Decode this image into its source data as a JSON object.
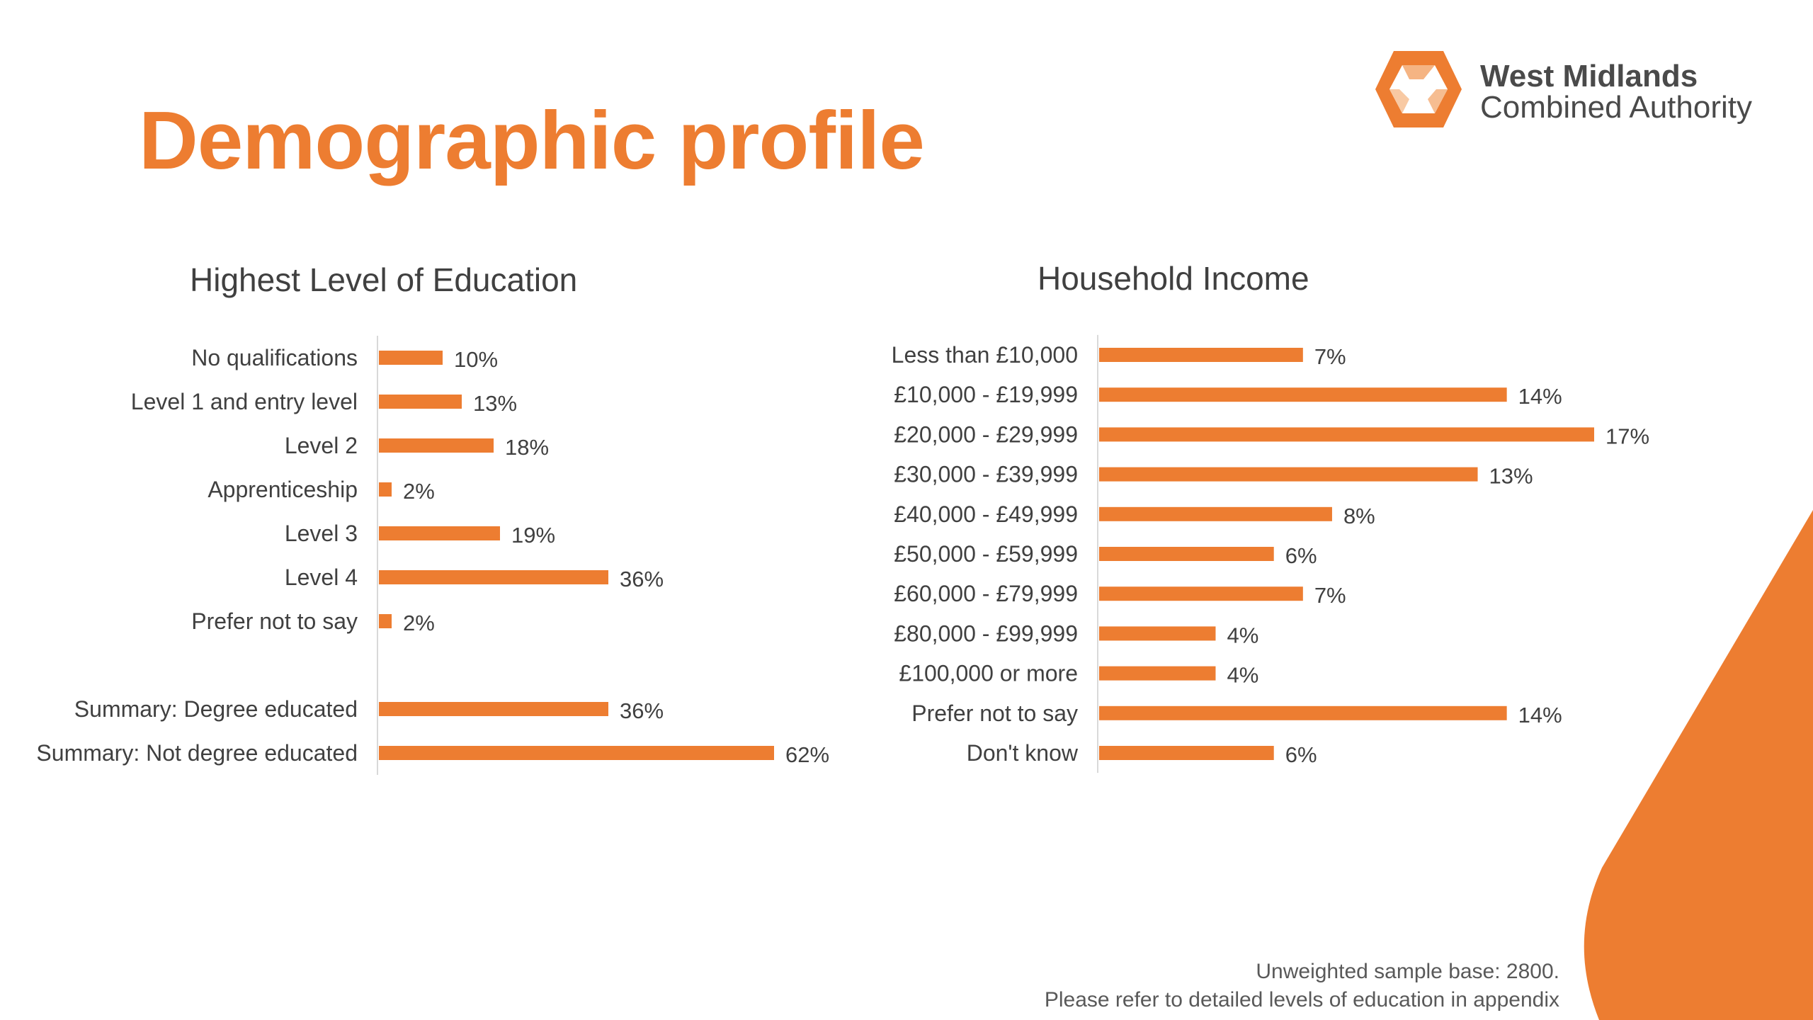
{
  "slide": {
    "title": "Demographic profile",
    "accent_color": "#ED7D31",
    "text_color": "#404040"
  },
  "logo": {
    "line1": "West Midlands",
    "line2": "Combined Authority",
    "icon": "hexagon-logo-icon"
  },
  "chart_data": [
    {
      "type": "bar",
      "orientation": "horizontal",
      "title": "Highest Level of Education",
      "categories": [
        "No qualifications",
        "Level 1 and entry level",
        "Level 2",
        "Apprenticeship",
        "Level 3",
        "Level 4",
        "Prefer not to say",
        "",
        "Summary: Degree educated",
        "Summary: Not degree educated"
      ],
      "values": [
        10,
        13,
        18,
        2,
        19,
        36,
        2,
        null,
        36,
        62
      ],
      "data_labels": [
        "10%",
        "13%",
        "18%",
        "2%",
        "19%",
        "36%",
        "2%",
        "",
        "36%",
        "62%"
      ],
      "unit": "%",
      "xlim": [
        0,
        62
      ],
      "grid": false,
      "legend": "none"
    },
    {
      "type": "bar",
      "orientation": "horizontal",
      "title": "Household Income",
      "categories": [
        "Less than £10,000",
        "£10,000 - £19,999",
        "£20,000 - £29,999",
        "£30,000 - £39,999",
        "£40,000 - £49,999",
        "£50,000 - £59,999",
        "£60,000 - £79,999",
        "£80,000 - £99,999",
        "£100,000 or more",
        "Prefer not to say",
        "Don't know"
      ],
      "values": [
        7,
        14,
        17,
        13,
        8,
        6,
        7,
        4,
        4,
        14,
        6
      ],
      "data_labels": [
        "7%",
        "14%",
        "17%",
        "13%",
        "8%",
        "6%",
        "7%",
        "4%",
        "4%",
        "14%",
        "6%"
      ],
      "unit": "%",
      "xlim": [
        0,
        17
      ],
      "grid": false,
      "legend": "none"
    }
  ],
  "footnote": {
    "line1": "Unweighted sample base: 2800.",
    "line2": "Please refer to detailed levels of education in appendix"
  }
}
